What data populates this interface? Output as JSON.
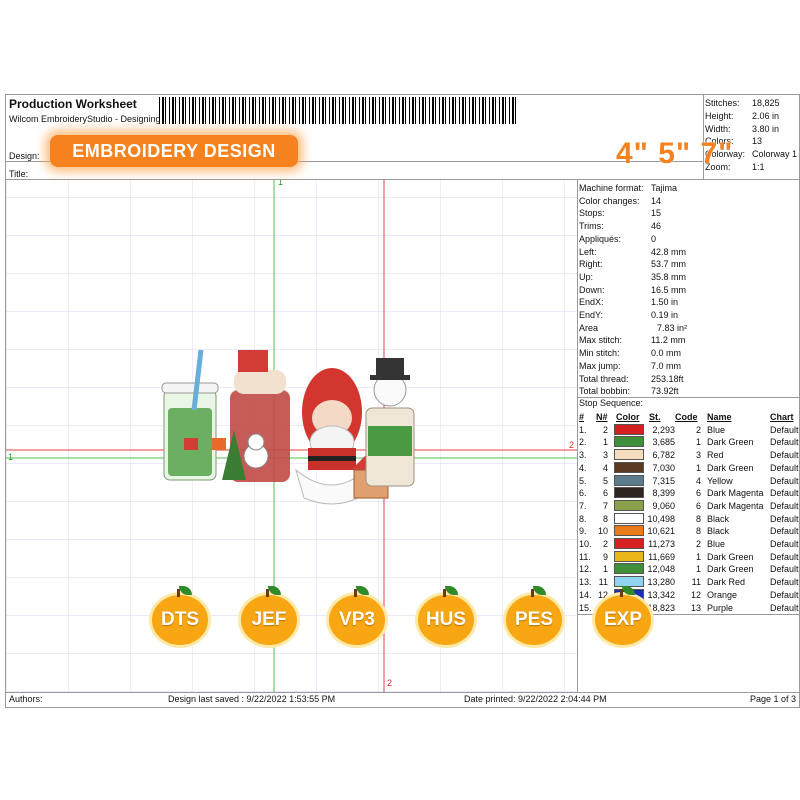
{
  "header": {
    "title": "Production Worksheet",
    "subtitle": "Wilcom EmbroideryStudio - Designing",
    "design_label": "Design:",
    "title_label": "Title:"
  },
  "badge": {
    "text": "EMBROIDERY DESIGN",
    "color": "#f5821f"
  },
  "sizes_overlay": "4\" 5\" 7\"",
  "summary": [
    {
      "label": "Stitches:",
      "value": "18,825"
    },
    {
      "label": "Height:",
      "value": "2.06 in"
    },
    {
      "label": "Width:",
      "value": "3.80 in"
    },
    {
      "label": "Colors:",
      "value": "13"
    },
    {
      "label": "Colorway:",
      "value": "Colorway 1"
    },
    {
      "label": "Zoom:",
      "value": "1:1"
    }
  ],
  "machine_info": [
    {
      "label": "Machine format:",
      "value": "Tajima"
    },
    {
      "label": "Color changes:",
      "value": "14"
    },
    {
      "label": "Stops:",
      "value": "15"
    },
    {
      "label": "Trims:",
      "value": "46"
    },
    {
      "label": "Appliqués:",
      "value": "0"
    },
    {
      "label": "Left:",
      "value": "42.8 mm"
    },
    {
      "label": "Right:",
      "value": "53.7 mm"
    },
    {
      "label": "Up:",
      "value": "35.8 mm"
    },
    {
      "label": "Down:",
      "value": "16.5 mm"
    },
    {
      "label": "EndX:",
      "value": "1.50 in"
    },
    {
      "label": "EndY:",
      "value": "0.19 in"
    },
    {
      "label": "Area",
      "value": "7.83 in²"
    },
    {
      "label": "Max stitch:",
      "value": "11.2 mm"
    },
    {
      "label": "Min stitch:",
      "value": "0.0 mm"
    },
    {
      "label": "Max jump:",
      "value": "7.0 mm"
    },
    {
      "label": "Total thread:",
      "value": "253.18ft"
    },
    {
      "label": "Total bobbin:",
      "value": "73.92ft"
    }
  ],
  "stop_sequence": {
    "title": "Stop Sequence:",
    "headers": [
      "#",
      "N#",
      "Color",
      "St.",
      "Code",
      "Name",
      "Chart"
    ],
    "rows": [
      {
        "num": "1.",
        "n": "2",
        "color": "#d42020",
        "st": "2,293",
        "code": "2",
        "name": "Blue",
        "chart": "Default"
      },
      {
        "num": "2.",
        "n": "1",
        "color": "#3f8f3a",
        "st": "3,685",
        "code": "1",
        "name": "Dark Green",
        "chart": "Default"
      },
      {
        "num": "3.",
        "n": "3",
        "color": "#f5dcc0",
        "st": "6,782",
        "code": "3",
        "name": "Red",
        "chart": "Default"
      },
      {
        "num": "4.",
        "n": "4",
        "color": "#5a3a22",
        "st": "7,030",
        "code": "1",
        "name": "Dark Green",
        "chart": "Default"
      },
      {
        "num": "5.",
        "n": "5",
        "color": "#5e7d8c",
        "st": "7,315",
        "code": "4",
        "name": "Yellow",
        "chart": "Default"
      },
      {
        "num": "6.",
        "n": "6",
        "color": "#2e2520",
        "st": "8,399",
        "code": "6",
        "name": "Dark Magenta",
        "chart": "Default"
      },
      {
        "num": "7.",
        "n": "7",
        "color": "#8aa04a",
        "st": "9,060",
        "code": "6",
        "name": "Dark Magenta",
        "chart": "Default"
      },
      {
        "num": "8.",
        "n": "8",
        "color": "#ffffff",
        "st": "10,498",
        "code": "8",
        "name": "Black",
        "chart": "Default"
      },
      {
        "num": "9.",
        "n": "10",
        "color": "#e87a1a",
        "st": "10,621",
        "code": "8",
        "name": "Black",
        "chart": "Default"
      },
      {
        "num": "10.",
        "n": "2",
        "color": "#d42020",
        "st": "11,273",
        "code": "2",
        "name": "Blue",
        "chart": "Default"
      },
      {
        "num": "11.",
        "n": "9",
        "color": "#e8b81a",
        "st": "11,669",
        "code": "1",
        "name": "Dark Green",
        "chart": "Default"
      },
      {
        "num": "12.",
        "n": "1",
        "color": "#3f8f3a",
        "st": "12,048",
        "code": "1",
        "name": "Dark Green",
        "chart": "Default"
      },
      {
        "num": "13.",
        "n": "11",
        "color": "#8fd3ef",
        "st": "13,280",
        "code": "11",
        "name": "Dark Red",
        "chart": "Default"
      },
      {
        "num": "14.",
        "n": "12",
        "color": "#1a2fb0",
        "st": "13,342",
        "code": "12",
        "name": "Orange",
        "chart": "Default"
      },
      {
        "num": "15.",
        "n": "13",
        "color": "#7a3aa0",
        "st": "18,823",
        "code": "13",
        "name": "Purple",
        "chart": "Default"
      }
    ]
  },
  "canvas_marks": {
    "x1": "1",
    "x2": "2",
    "y1": "1",
    "y2": "2"
  },
  "formats": [
    "DTS",
    "JEF",
    "VP3",
    "HUS",
    "PES",
    "EXP"
  ],
  "footer": {
    "authors": "Authors:",
    "saved": "Design last saved : 9/22/2022 1:53:55 PM",
    "printed": "Date printed: 9/22/2022 2:04:44 PM",
    "page": "Page 1 of 3"
  }
}
